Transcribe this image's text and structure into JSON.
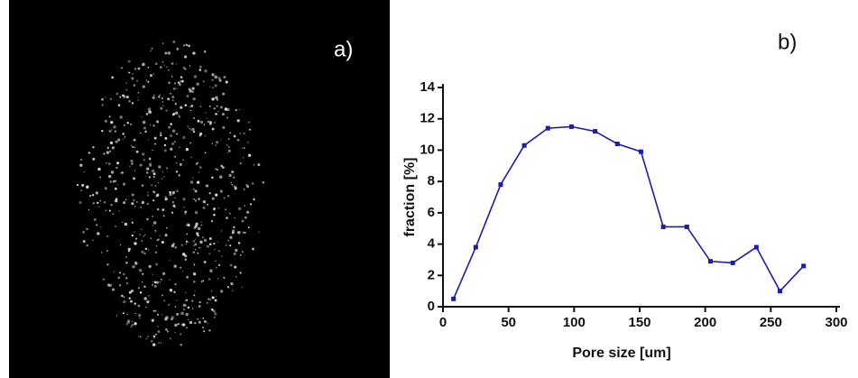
{
  "panel_a": {
    "label": "a)"
  },
  "chart_data": {
    "type": "line",
    "annotation": "b)",
    "x_label": "Pore size [um]",
    "y_label": "fraction [%]",
    "x": [
      8,
      25,
      44,
      62,
      80,
      98,
      116,
      133,
      151,
      168,
      186,
      204,
      221,
      239,
      257,
      275
    ],
    "series": [
      {
        "color": "#1c1ca6",
        "values": [
          0.5,
          3.8,
          7.8,
          10.3,
          11.4,
          11.5,
          11.2,
          10.4,
          9.9,
          5.1,
          5.1,
          2.9,
          2.8,
          3.8,
          1.0,
          2.6
        ]
      }
    ],
    "xlim": [
      0,
      300
    ],
    "xticks": [
      0,
      50,
      100,
      150,
      200,
      250,
      300
    ],
    "ylim": [
      0,
      14
    ],
    "yticks": [
      0,
      2,
      4,
      6,
      8,
      10,
      12,
      14
    ]
  }
}
